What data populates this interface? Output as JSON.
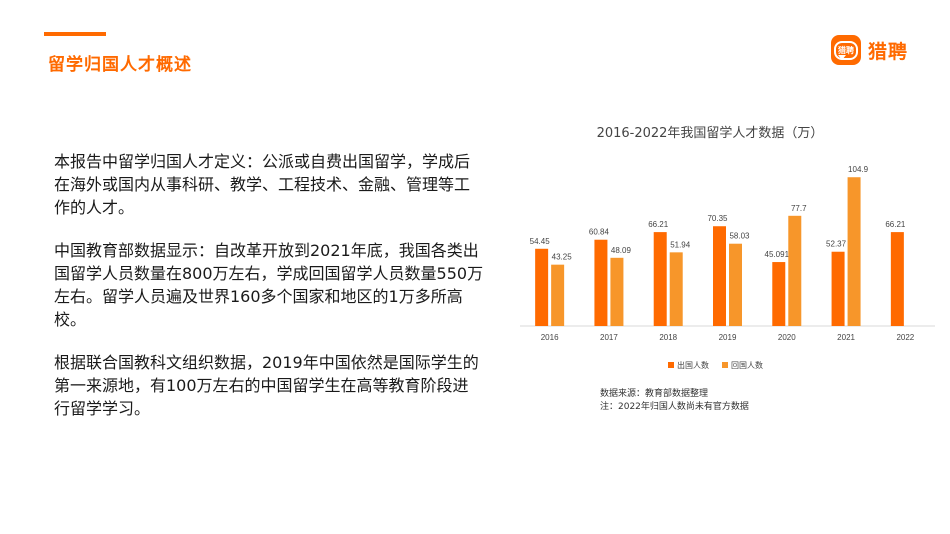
{
  "header": {
    "title": "留学归国人才概述",
    "logo_mark_text": "猎聘",
    "logo_text": "猎聘",
    "accent_color": "#ff6a00"
  },
  "body": {
    "p1": "本报告中留学归国人才定义：公派或自费出国留学，学成后在海外或国内从事科研、教学、工程技术、金融、管理等工作的人才。",
    "p2": "中国教育部数据显示：自改革开放到2021年底，我国各类出国留学人员数量在800万左右，学成回国留学人员数量550万左右。留学人员遍及世界160多个国家和地区的1万多所高校。",
    "p3": "根据联合国教科文组织数据，2019年中国依然是国际学生的第一来源地，有100万左右的中国留学生在高等教育阶段进行留学学习。"
  },
  "chart_data": {
    "type": "bar",
    "title": "2016-2022年我国留学人才数据（万）",
    "categories": [
      "2016",
      "2017",
      "2018",
      "2019",
      "2020",
      "2021",
      "2022"
    ],
    "series": [
      {
        "name": "出国人数",
        "color": "#ff6a00",
        "values": [
          54.45,
          60.84,
          66.21,
          70.35,
          45.091,
          52.37,
          66.21
        ],
        "labels": [
          "54.45",
          "60.84",
          "66.21",
          "70.35",
          "45.091",
          "52.37",
          "66.21"
        ]
      },
      {
        "name": "回国人数",
        "color": "#f7962a",
        "values": [
          43.25,
          48.09,
          51.94,
          58.03,
          77.7,
          104.9,
          null
        ],
        "labels": [
          "43.25",
          "48.09",
          "51.94",
          "58.03",
          "77.7",
          "104.9",
          ""
        ]
      }
    ],
    "ylim": [
      0,
      110
    ],
    "legend": "bottom-center",
    "grid": false
  },
  "source": {
    "line1": "数据来源：教育部数据整理",
    "line2": "注：2022年归国人数尚未有官方数据"
  }
}
